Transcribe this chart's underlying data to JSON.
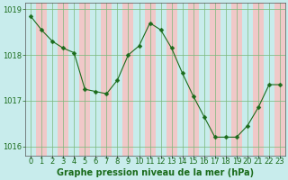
{
  "hours": [
    0,
    1,
    2,
    3,
    4,
    5,
    6,
    7,
    8,
    9,
    10,
    11,
    12,
    13,
    14,
    15,
    16,
    17,
    18,
    19,
    20,
    21,
    22,
    23
  ],
  "pressure": [
    1018.85,
    1018.55,
    1018.3,
    1018.15,
    1018.05,
    1017.25,
    1017.2,
    1017.15,
    1017.45,
    1018.0,
    1018.2,
    1018.7,
    1018.55,
    1018.15,
    1017.6,
    1017.1,
    1016.65,
    1016.2,
    1016.2,
    1016.2,
    1016.45,
    1016.85,
    1017.35,
    1017.35
  ],
  "line_color": "#1a6b1a",
  "marker": "D",
  "marker_size": 2.5,
  "bg_color": "#c8ecec",
  "grid_color_v": "#d8a0a0",
  "grid_color_h": "#7ab87a",
  "axis_color": "#555555",
  "ylim": [
    1015.8,
    1019.15
  ],
  "yticks": [
    1016,
    1017,
    1018,
    1019
  ],
  "xlabel": "Graphe pression niveau de la mer (hPa)",
  "xlabel_fontsize": 7,
  "tick_fontsize": 6,
  "label_color": "#1a6b1a"
}
